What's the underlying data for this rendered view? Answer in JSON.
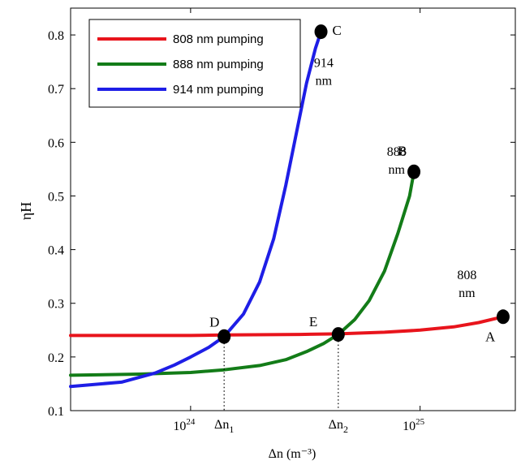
{
  "chart_data": {
    "type": "line",
    "x_scale": "log",
    "xlabel": "Δn (m⁻³)",
    "ylabel": "ηH",
    "xlim": [
      3e+23,
      2.6e+25
    ],
    "ylim": [
      0.1,
      0.85
    ],
    "y_ticks": [
      0.1,
      0.2,
      0.3,
      0.4,
      0.5,
      0.6,
      0.7,
      0.8
    ],
    "x_ticks": [
      {
        "value": 1e+24,
        "base": "10",
        "exp": "24"
      },
      {
        "value": 1e+25,
        "base": "10",
        "exp": "25"
      }
    ],
    "x_markers": [
      {
        "value": 1.4e+24,
        "base": "Δn",
        "sub": "1"
      },
      {
        "value": 4.4e+24,
        "base": "Δn",
        "sub": "2"
      }
    ],
    "grid": false,
    "legend_position": "top-left",
    "series": [
      {
        "name": "808 nm pumping",
        "color": "#e8141c",
        "points": [
          [
            3e+23,
            0.24
          ],
          [
            1e+24,
            0.24
          ],
          [
            1.4e+24,
            0.241
          ],
          [
            3e+24,
            0.242
          ],
          [
            4.4e+24,
            0.243
          ],
          [
            7e+24,
            0.246
          ],
          [
            1e+25,
            0.25
          ],
          [
            1.4e+25,
            0.256
          ],
          [
            1.8e+25,
            0.264
          ],
          [
            2.3e+25,
            0.275
          ]
        ]
      },
      {
        "name": "888 nm pumping",
        "color": "#137c18",
        "points": [
          [
            3e+23,
            0.166
          ],
          [
            6e+23,
            0.168
          ],
          [
            1e+24,
            0.171
          ],
          [
            1.4e+24,
            0.176
          ],
          [
            2e+24,
            0.184
          ],
          [
            2.6e+24,
            0.195
          ],
          [
            3.2e+24,
            0.21
          ],
          [
            3.8e+24,
            0.225
          ],
          [
            4.4e+24,
            0.242
          ],
          [
            5.2e+24,
            0.27
          ],
          [
            6e+24,
            0.305
          ],
          [
            7e+24,
            0.36
          ],
          [
            8e+24,
            0.43
          ],
          [
            9e+24,
            0.5
          ],
          [
            9.4e+24,
            0.545
          ]
        ]
      },
      {
        "name": "914 nm pumping",
        "color": "#1e1ee6",
        "points": [
          [
            3e+23,
            0.145
          ],
          [
            5e+23,
            0.153
          ],
          [
            7e+23,
            0.17
          ],
          [
            8.5e+23,
            0.185
          ],
          [
            1e+24,
            0.2
          ],
          [
            1.2e+24,
            0.218
          ],
          [
            1.4e+24,
            0.238
          ],
          [
            1.7e+24,
            0.28
          ],
          [
            2e+24,
            0.34
          ],
          [
            2.3e+24,
            0.42
          ],
          [
            2.6e+24,
            0.52
          ],
          [
            2.9e+24,
            0.62
          ],
          [
            3.2e+24,
            0.71
          ],
          [
            3.5e+24,
            0.775
          ],
          [
            3.7e+24,
            0.806
          ]
        ]
      }
    ],
    "points": [
      {
        "label": "A",
        "x": 2.3e+25,
        "y": 0.275
      },
      {
        "label": "B",
        "x": 9.4e+24,
        "y": 0.545
      },
      {
        "label": "C",
        "x": 3.7e+24,
        "y": 0.806
      },
      {
        "label": "D",
        "x": 1.4e+24,
        "y": 0.238
      },
      {
        "label": "E",
        "x": 4.4e+24,
        "y": 0.242
      }
    ],
    "annotations": [
      {
        "line1": "914",
        "line2": "nm",
        "x": 3.8e+24,
        "y": 0.74
      },
      {
        "line1": "888",
        "line2": "nm",
        "x": 7.9e+24,
        "y": 0.575
      },
      {
        "line1": "808",
        "line2": "nm",
        "x": 1.6e+25,
        "y": 0.345
      }
    ]
  }
}
